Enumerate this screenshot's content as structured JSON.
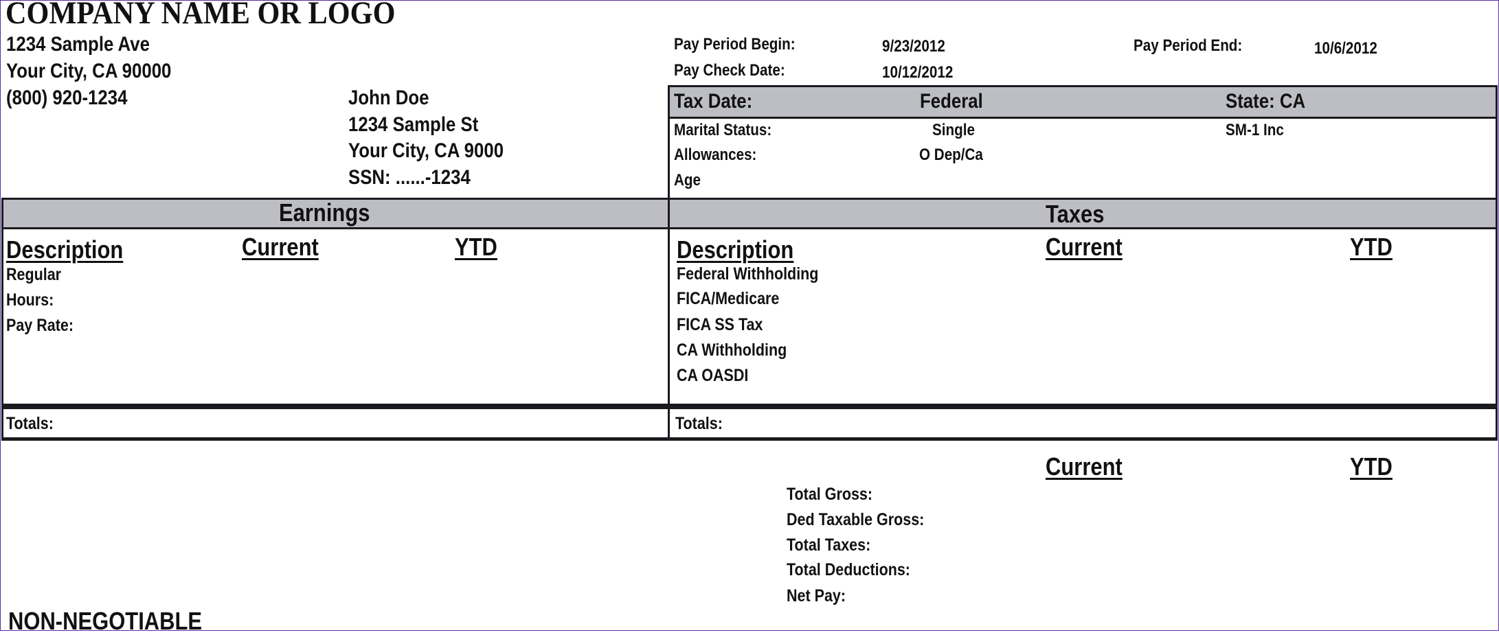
{
  "company": {
    "name": "COMPANY NAME OR LOGO",
    "address1": "1234 Sample Ave",
    "address2": "Your City, CA 90000",
    "phone": "(800) 920-1234"
  },
  "employee": {
    "name": "John Doe",
    "address1": "1234 Sample St",
    "address2": "Your City, CA 9000",
    "ssn": "SSN: ......-1234"
  },
  "pay_period": {
    "begin_label": "Pay Period Begin:",
    "begin_value": "9/23/2012",
    "end_label": "Pay Period End:",
    "end_value": "10/6/2012",
    "check_label": "Pay Check Date:",
    "check_value": "10/12/2012"
  },
  "tax_info": {
    "header": {
      "tax_date": "Tax Date:",
      "federal": "Federal",
      "state": "State: CA"
    },
    "marital_label": "Marital Status:",
    "marital_federal": "Single",
    "marital_state": "SM-1 Inc",
    "allowances_label": "Allowances:",
    "allowances_federal": "O Dep/Ca",
    "age_label": "Age"
  },
  "earnings": {
    "title": "Earnings",
    "columns": [
      "Description",
      "Current",
      "YTD"
    ],
    "rows": [
      "Regular",
      "Hours:",
      "Pay Rate:"
    ],
    "totals_label": "Totals:"
  },
  "taxes": {
    "title": "Taxes",
    "columns": [
      "Description",
      "Current",
      "YTD"
    ],
    "rows": [
      "Federal Withholding",
      "FICA/Medicare",
      "FICA SS Tax",
      "CA Withholding",
      "CA OASDI"
    ],
    "totals_label": "Totals:"
  },
  "summary": {
    "columns": [
      "Current",
      "YTD"
    ],
    "rows": [
      "Total Gross:",
      "Ded Taxable Gross:",
      "Total Taxes:",
      "Total Deductions:",
      "Net Pay:"
    ]
  },
  "footer": {
    "non_negotiable": "NON-NEGOTIABLE"
  },
  "colors": {
    "header_gray": "#bdbec3",
    "border": "#1a1a1f",
    "frame": "#5a2ca0"
  }
}
